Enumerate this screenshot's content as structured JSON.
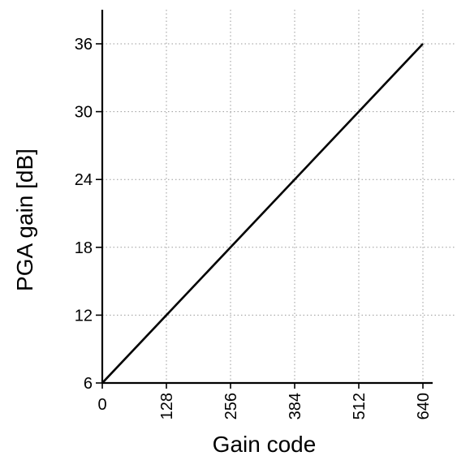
{
  "chart_data": {
    "type": "line",
    "xlabel": "Gain code",
    "ylabel": "PGA gain [dB]",
    "xlim": [
      0,
      640
    ],
    "ylim": [
      6,
      36
    ],
    "x_ticks": [
      0,
      128,
      256,
      384,
      512,
      640
    ],
    "y_ticks": [
      6,
      12,
      18,
      24,
      30,
      36
    ],
    "grid": true,
    "series": [
      {
        "x": [
          0,
          640
        ],
        "y": [
          6,
          36
        ],
        "color": "#000000"
      }
    ]
  }
}
